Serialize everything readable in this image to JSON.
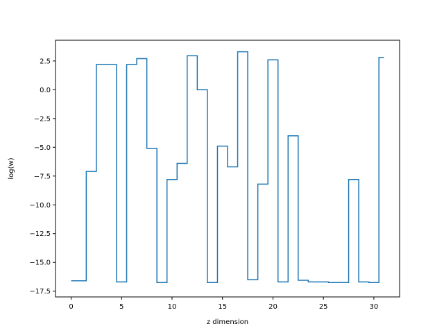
{
  "chart_data": {
    "type": "line",
    "drawstyle": "steps-mid",
    "title": "",
    "xlabel": "z dimension",
    "ylabel": "log(w)",
    "xlim": [
      -1.55,
      32.55
    ],
    "ylim": [
      -18.0,
      4.3
    ],
    "xticks": [
      0,
      5,
      10,
      15,
      20,
      25,
      30
    ],
    "yticks": [
      2.5,
      0.0,
      -2.5,
      -5.0,
      -7.5,
      -10.0,
      -12.5,
      -15.0,
      -17.5
    ],
    "ytick_labels": [
      "2.5",
      "0.0",
      "−2.5",
      "−5.0",
      "−7.5",
      "−10.0",
      "−12.5",
      "−15.0",
      "−17.5"
    ],
    "grid": false,
    "series": [
      {
        "color": "#1f77b4",
        "x": [
          0,
          1,
          2,
          3,
          4,
          5,
          6,
          7,
          8,
          9,
          10,
          11,
          12,
          13,
          14,
          15,
          16,
          17,
          18,
          19,
          20,
          21,
          22,
          23,
          24,
          25,
          26,
          27,
          28,
          29,
          30,
          31
        ],
        "y": [
          -16.6,
          -16.6,
          -7.1,
          2.2,
          2.2,
          -16.7,
          2.2,
          2.7,
          -5.1,
          -16.75,
          -7.8,
          -6.4,
          2.95,
          0.0,
          -16.75,
          -4.9,
          -6.7,
          3.3,
          -16.5,
          -8.2,
          2.6,
          -16.7,
          -4.0,
          -16.55,
          -16.7,
          -16.7,
          -16.75,
          -16.75,
          -7.8,
          -16.7,
          -16.75,
          2.8
        ]
      }
    ]
  }
}
